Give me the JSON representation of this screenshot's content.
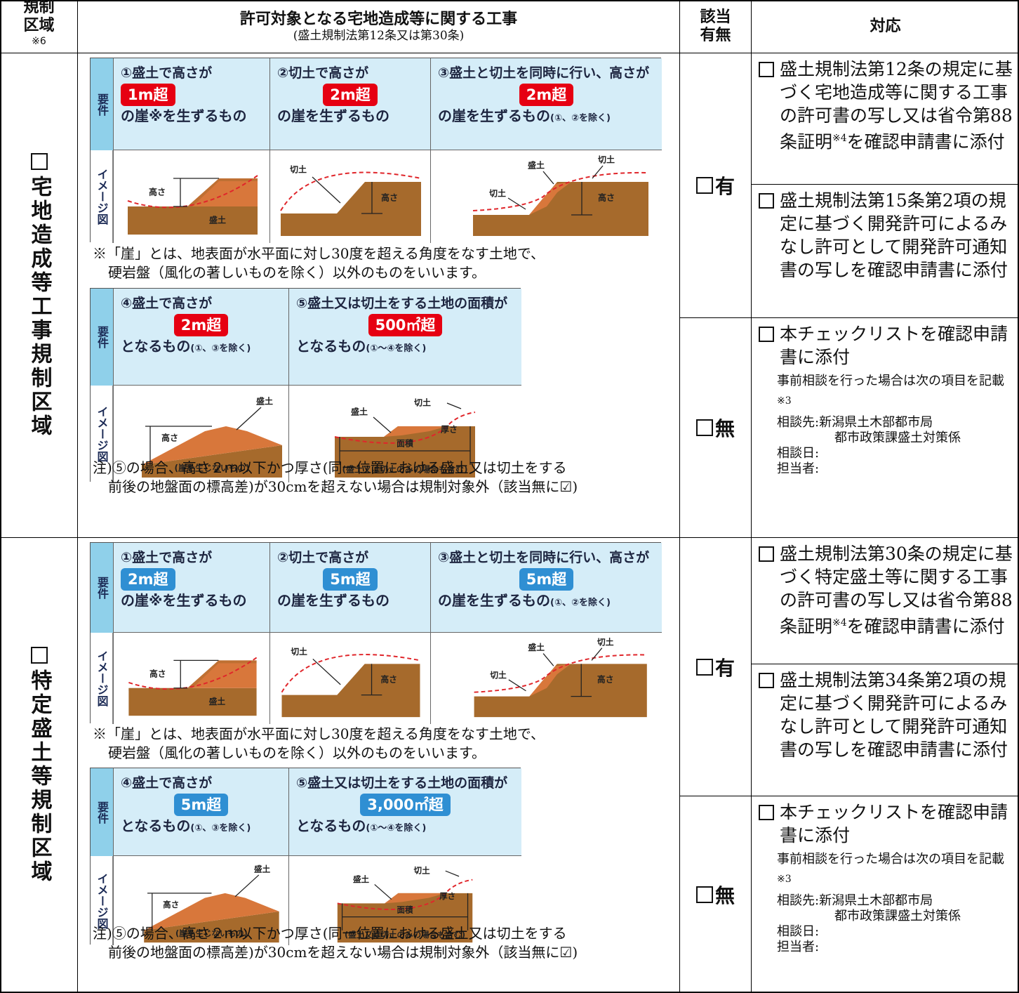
{
  "header": {
    "region": "規制区域",
    "region_note": "※6",
    "works_title": "許可対象となる宅地造成等に関する工事",
    "works_subtitle": "(盛土規制法第12条又は第30条)",
    "applicable": "該当有無",
    "response": "対応"
  },
  "sections": [
    {
      "region": "宅地造成等工事規制区域",
      "badge_color": "#e60012",
      "panels": [
        {
          "req": "要件",
          "img": "イメージ図",
          "cells": [
            {
              "heading": "①盛土で高さが",
              "badge": "1m超",
              "tail": "の崖※を生ずるもの",
              "labels": [
                "高さ",
                "盛土"
              ]
            },
            {
              "heading": "②切土で高さが",
              "badge": "2m超",
              "tail": "の崖を生ずるもの",
              "labels": [
                "切土",
                "高さ"
              ]
            },
            {
              "heading": "③盛土と切土を同時に行い、高さが",
              "badge": "2m超",
              "tail": "の崖を生ずるもの",
              "tail_note": "(①、②を除く)",
              "labels": [
                "切土",
                "盛土",
                "切土",
                "高さ"
              ]
            }
          ]
        },
        {
          "req": "要件",
          "img": "イメージ図",
          "cells": [
            {
              "heading": "④盛土で高さが",
              "badge": "2m超",
              "tail": "となるもの",
              "tail_note": "(①、③を除く)",
              "labels": [
                "盛土",
                "高さ",
                "(崖を生じないもの)"
              ]
            },
            {
              "heading": "⑤盛土又は切土をする土地の面積が",
              "badge": "500㎡超",
              "tail": "となるもの",
              "tail_note": "(①～④を除く)",
              "labels": [
                "盛土",
                "切土",
                "厚さ",
                "面積",
                "(盛土又は切土のみの場合も含む)"
              ]
            }
          ]
        }
      ],
      "note_cliff": [
        "※「崖」とは、地表面が水平面に対し30度を超える角度をなす土地で、",
        "硬岩盤（風化の著しいものを除く）以外のものをいいます。"
      ],
      "note_exempt": [
        "注)⑤の場合、高さ２ｍ以下かつ厚さ(同一位置における盛土又は切土をする",
        "前後の地盤面の標高差)が30cmを超えない場合は規制対象外（該当無に☑)"
      ],
      "yes_label": "有",
      "no_label": "無",
      "yes_items": [
        {
          "text": "盛土規制法第12条の規定に基づく宅地造成等に関する工事の許可書の写し又は省令第88条証明",
          "sup": "※4",
          "after": "を確認申請書に添付"
        },
        {
          "text": "盛土規制法第15条第2項の規定に基づく開発許可によるみなし許可として開発許可通知書の写しを確認申請書に添付"
        }
      ],
      "no_item": {
        "text": "本チェックリストを確認申請書に添付",
        "detail": "事前相談を行った場合は次の項目を記載",
        "detail_sup": "※3",
        "fields": [
          "相談先:新潟県土木部都市局",
          "都市政策課盛土対策係",
          "相談日:",
          "担当者:"
        ]
      }
    },
    {
      "region": "特定盛土等規制区域",
      "badge_color": "#2f8fd3",
      "panels": [
        {
          "req": "要件",
          "img": "イメージ図",
          "cells": [
            {
              "heading": "①盛土で高さが",
              "badge": "2m超",
              "tail": "の崖※を生ずるもの",
              "labels": [
                "高さ",
                "盛土"
              ]
            },
            {
              "heading": "②切土で高さが",
              "badge": "5m超",
              "tail": "の崖を生ずるもの",
              "labels": [
                "切土",
                "高さ"
              ]
            },
            {
              "heading": "③盛土と切土を同時に行い、高さが",
              "badge": "5m超",
              "tail": "の崖を生ずるもの",
              "tail_note": "(①、②を除く)",
              "labels": [
                "切土",
                "盛土",
                "切土",
                "高さ"
              ]
            }
          ]
        },
        {
          "req": "要件",
          "img": "イメージ図",
          "cells": [
            {
              "heading": "④盛土で高さが",
              "badge": "5m超",
              "tail": "となるもの",
              "tail_note": "(①、③を除く)",
              "labels": [
                "盛土",
                "高さ",
                "(崖を生じないもの)"
              ]
            },
            {
              "heading": "⑤盛土又は切土をする土地の面積が",
              "badge": "3,000㎡超",
              "tail": "となるもの",
              "tail_note": "(①～④を除く)",
              "labels": [
                "盛土",
                "切土",
                "厚さ",
                "面積",
                "(盛土又は切土のみの場合も含む)"
              ]
            }
          ]
        }
      ],
      "note_cliff": [
        "※「崖」とは、地表面が水平面に対し30度を超える角度をなす土地で、",
        "硬岩盤（風化の著しいものを除く）以外のものをいいます。"
      ],
      "note_exempt": [
        "注)⑤の場合、高さ２ｍ以下かつ厚さ(同一位置における盛土又は切土をする",
        "前後の地盤面の標高差)が30cmを超えない場合は規制対象外（該当無に☑)"
      ],
      "yes_label": "有",
      "no_label": "無",
      "yes_items": [
        {
          "text": "盛土規制法第30条の規定に基づく特定盛土等に関する工事の許可書の写し又は省令第88条証明",
          "sup": "※4",
          "after": "を確認申請書に添付"
        },
        {
          "text": "盛土規制法第34条第2項の規定に基づく開発許可によるみなし許可として開発許可通知書の写しを確認申請書に添付"
        }
      ],
      "no_item": {
        "text": "本チェックリストを確認申請書に添付",
        "detail": "事前相談を行った場合は次の項目を記載",
        "detail_sup": "※3",
        "fields": [
          "相談先:新潟県土木部都市局",
          "都市政策課盛土対策係",
          "相談日:",
          "担当者:"
        ]
      }
    }
  ]
}
